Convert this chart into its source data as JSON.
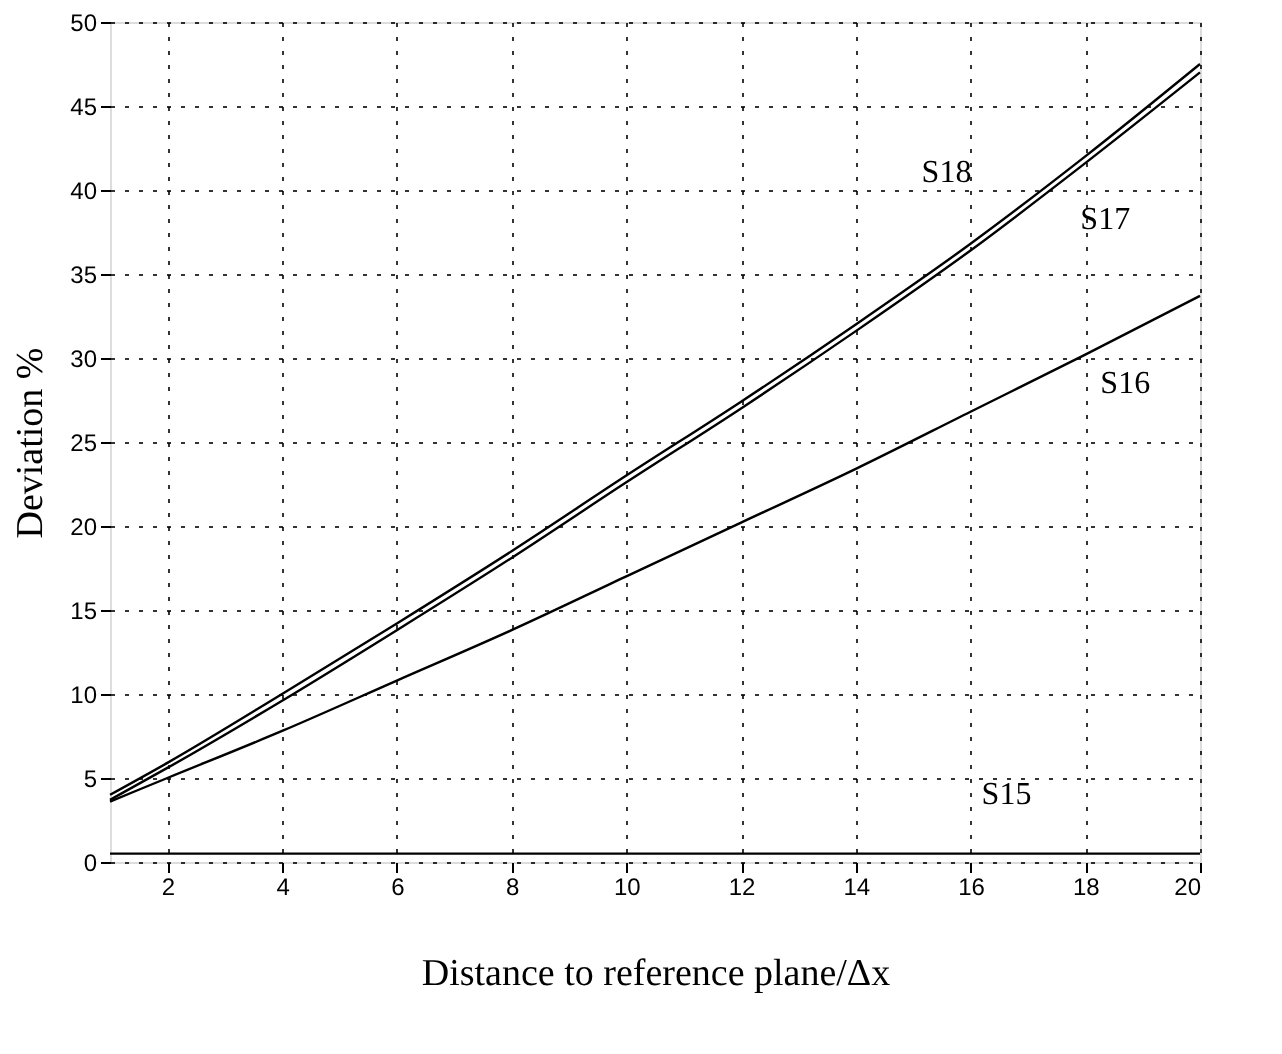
{
  "chart_data": {
    "type": "line",
    "xlabel": "Distance to reference plane/Δx",
    "ylabel": "Deviation %",
    "x": [
      1,
      2,
      4,
      6,
      8,
      10,
      12,
      14,
      16,
      18,
      20
    ],
    "series": [
      {
        "name": "S18",
        "color": "#000000",
        "values": [
          4.0,
          5.9,
          10.0,
          14.2,
          18.5,
          23.0,
          27.4,
          32.0,
          36.8,
          42.0,
          47.5
        ]
      },
      {
        "name": "S17",
        "color": "#000000",
        "values": [
          3.7,
          5.6,
          9.6,
          13.8,
          18.1,
          22.6,
          27.0,
          31.6,
          36.4,
          41.6,
          47.0
        ]
      },
      {
        "name": "S16",
        "color": "#000000",
        "values": [
          3.6,
          5.0,
          7.8,
          10.8,
          13.8,
          17.0,
          20.2,
          23.4,
          26.8,
          30.2,
          33.7
        ]
      },
      {
        "name": "S15",
        "color": "#000000",
        "values": [
          0.5,
          0.5,
          0.5,
          0.5,
          0.5,
          0.5,
          0.5,
          0.5,
          0.5,
          0.5,
          0.5
        ]
      }
    ],
    "xlim": [
      1,
      20
    ],
    "xticks": [
      2,
      4,
      6,
      8,
      10,
      12,
      14,
      16,
      18,
      20
    ],
    "ylim": [
      0,
      50
    ],
    "yticks": [
      0,
      5,
      10,
      15,
      20,
      25,
      30,
      35,
      40,
      45,
      50
    ],
    "grid": true,
    "marker": "none",
    "line_style": "solid",
    "legend": false
  }
}
